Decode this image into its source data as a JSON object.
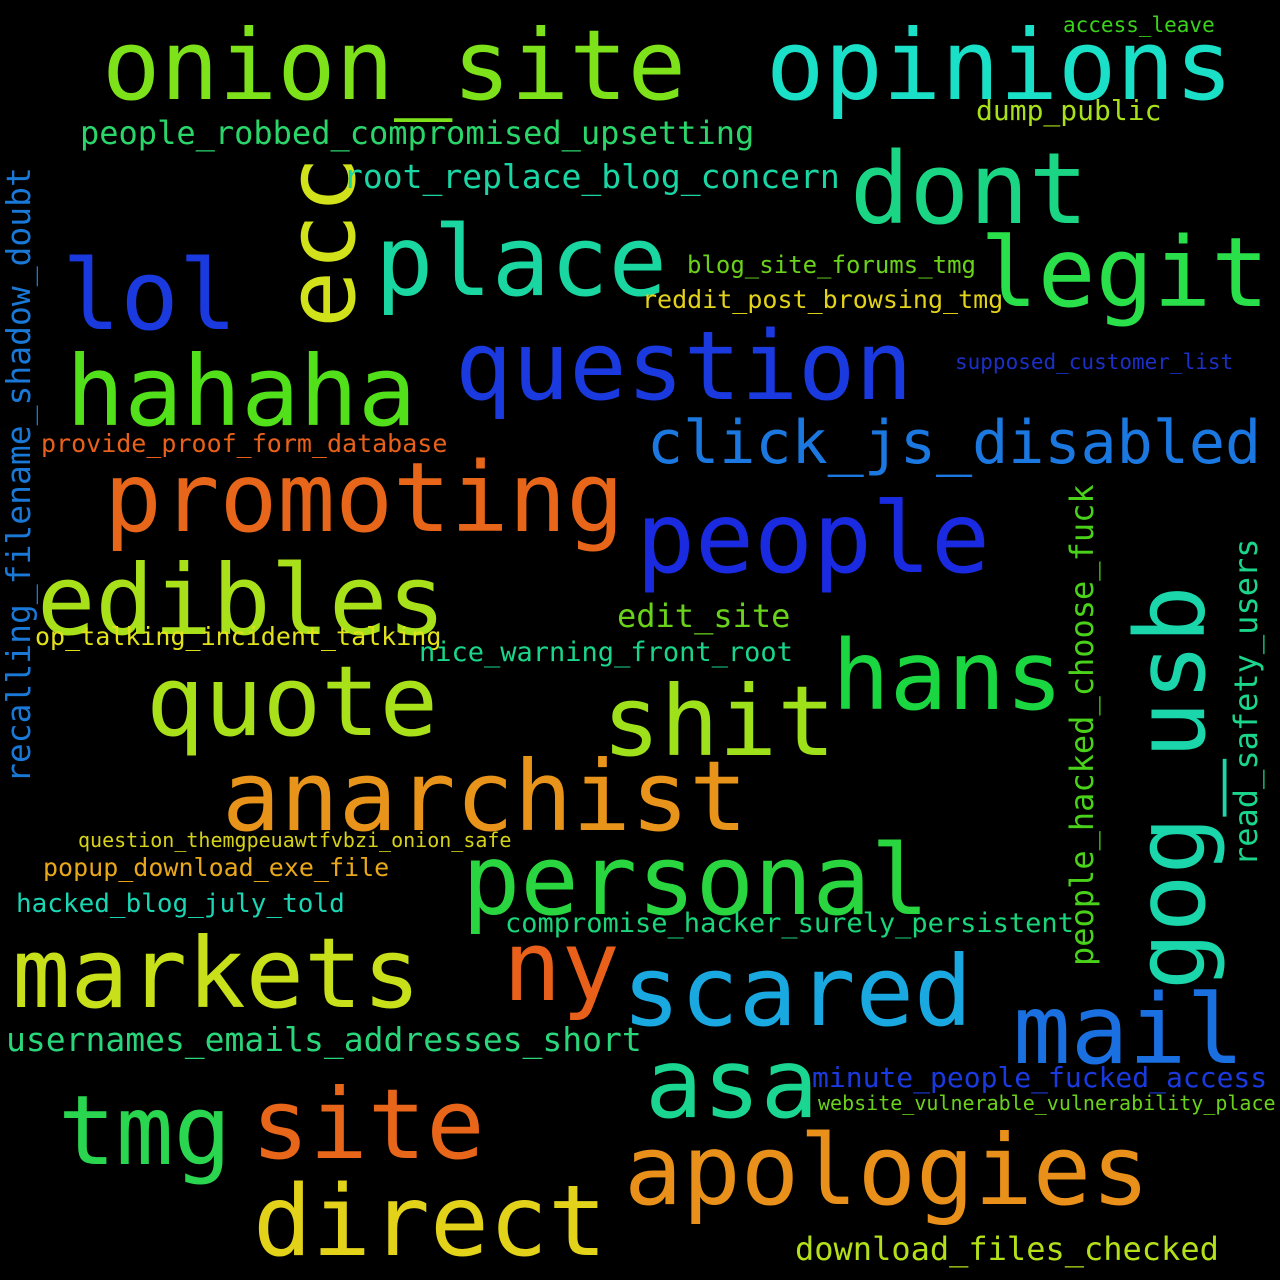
{
  "background": "#000000",
  "words": [
    {
      "text": "onion_site",
      "color": "#7de21a"
    },
    {
      "text": "opinions",
      "color": "#1ae0c8"
    },
    {
      "text": "access_leave",
      "color": "#3ad21a"
    },
    {
      "text": "dump_public",
      "color": "#a8e01a"
    },
    {
      "text": "people_robbed_compromised_upsetting",
      "color": "#2ad66a"
    },
    {
      "text": "ecc",
      "color": "#d2e21a"
    },
    {
      "text": "root_replace_blog_concern",
      "color": "#1ad6a4"
    },
    {
      "text": "dont",
      "color": "#1ad684"
    },
    {
      "text": "place",
      "color": "#1ad6a0"
    },
    {
      "text": "legit",
      "color": "#2ae04a"
    },
    {
      "text": "lol",
      "color": "#1a3ae0"
    },
    {
      "text": "blog_site_forums_tmg",
      "color": "#6ad21a"
    },
    {
      "text": "reddit_post_browsing_tmg",
      "color": "#e2d21a"
    },
    {
      "text": "hahaha",
      "color": "#52e01a"
    },
    {
      "text": "question",
      "color": "#1a3ae0"
    },
    {
      "text": "supposed_customer_list",
      "color": "#1a30c8"
    },
    {
      "text": "recalling_filename_shadow_doubt",
      "color": "#1a78d6"
    },
    {
      "text": "provide_proof_form_database",
      "color": "#e8601a"
    },
    {
      "text": "click_js_disabled",
      "color": "#1a78e0"
    },
    {
      "text": "promoting",
      "color": "#e8661a"
    },
    {
      "text": "people",
      "color": "#1a2ae0"
    },
    {
      "text": "people_hacked_choose_fuck",
      "color": "#4ad21a"
    },
    {
      "text": "read_safety_users",
      "color": "#1ad68a"
    },
    {
      "text": "edibles",
      "color": "#a8e01a"
    },
    {
      "text": "edit_site",
      "color": "#6ad21a"
    },
    {
      "text": "op_talking_incident_talking",
      "color": "#e2e21a"
    },
    {
      "text": "nice_warning_front_root",
      "color": "#1ad68a"
    },
    {
      "text": "gog_usb",
      "color": "#1ad6aa"
    },
    {
      "text": "quote",
      "color": "#a8e01a"
    },
    {
      "text": "hans",
      "color": "#1ad640"
    },
    {
      "text": "shit",
      "color": "#9ee01a"
    },
    {
      "text": "anarchist",
      "color": "#e8941a"
    },
    {
      "text": "question_themgpeuawtfvbzi_onion_safe",
      "color": "#d6d21a"
    },
    {
      "text": "personal",
      "color": "#2ad640"
    },
    {
      "text": "popup_download_exe_file",
      "color": "#e8a81a"
    },
    {
      "text": "hacked_blog_july_told",
      "color": "#1ad6b4"
    },
    {
      "text": "compromise_hacker_surely_persistent",
      "color": "#1ad67a"
    },
    {
      "text": "markets",
      "color": "#c8e01a"
    },
    {
      "text": "ny",
      "color": "#e8601a"
    },
    {
      "text": "scared",
      "color": "#1aa8e0"
    },
    {
      "text": "mail",
      "color": "#1a70e0"
    },
    {
      "text": "usernames_emails_addresses_short",
      "color": "#2ad67a"
    },
    {
      "text": "asa",
      "color": "#1ad690"
    },
    {
      "text": "minute_people_fucked_access",
      "color": "#1a3ae0"
    },
    {
      "text": "website_vulnerable_vulnerability_place",
      "color": "#6ad21a"
    },
    {
      "text": "tmg",
      "color": "#2ad650"
    },
    {
      "text": "site",
      "color": "#e8661a"
    },
    {
      "text": "apologies",
      "color": "#e8901a"
    },
    {
      "text": "direct",
      "color": "#e2d21a"
    },
    {
      "text": "download_files_checked",
      "color": "#b4e01a"
    }
  ]
}
